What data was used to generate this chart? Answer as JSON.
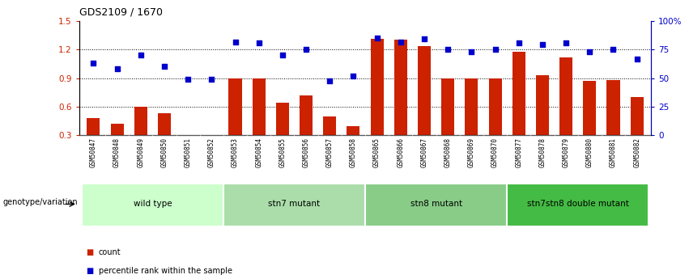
{
  "title": "GDS2109 / 1670",
  "samples": [
    "GSM50847",
    "GSM50848",
    "GSM50849",
    "GSM50850",
    "GSM50851",
    "GSM50852",
    "GSM50853",
    "GSM50854",
    "GSM50855",
    "GSM50856",
    "GSM50857",
    "GSM50858",
    "GSM50865",
    "GSM50866",
    "GSM50867",
    "GSM50868",
    "GSM50869",
    "GSM50870",
    "GSM50877",
    "GSM50878",
    "GSM50879",
    "GSM50880",
    "GSM50881",
    "GSM50882"
  ],
  "bar_values": [
    0.48,
    0.42,
    0.6,
    0.53,
    0.3,
    0.3,
    0.9,
    0.9,
    0.64,
    0.72,
    0.5,
    0.4,
    1.31,
    1.3,
    1.24,
    0.9,
    0.9,
    0.9,
    1.18,
    0.93,
    1.12,
    0.87,
    0.88,
    0.7
  ],
  "dot_values": [
    1.06,
    1.0,
    1.14,
    1.02,
    0.89,
    0.89,
    1.28,
    1.27,
    1.14,
    1.2,
    0.87,
    0.92,
    1.32,
    1.28,
    1.31,
    1.2,
    1.18,
    1.2,
    1.27,
    1.25,
    1.27,
    1.18,
    1.2,
    1.1
  ],
  "groups": [
    {
      "label": "wild type",
      "start": 0,
      "end": 6,
      "color": "#ccffcc"
    },
    {
      "label": "stn7 mutant",
      "start": 6,
      "end": 12,
      "color": "#aaddaa"
    },
    {
      "label": "stn8 mutant",
      "start": 12,
      "end": 18,
      "color": "#88cc88"
    },
    {
      "label": "stn7stn8 double mutant",
      "start": 18,
      "end": 24,
      "color": "#44bb44"
    }
  ],
  "bar_color": "#cc2200",
  "dot_color": "#0000cc",
  "yticks_left": [
    0.3,
    0.6,
    0.9,
    1.2,
    1.5
  ],
  "yticks_right_labels": [
    "0",
    "25",
    "50",
    "75",
    "100%"
  ],
  "yticks_right_vals": [
    0.3,
    0.6,
    0.9,
    1.2,
    1.5
  ],
  "ylim": [
    0.3,
    1.5
  ],
  "bar_bottom": 0.3,
  "ylabel_left_color": "#cc2200",
  "ylabel_right_color": "#0000cc",
  "hlines": [
    0.6,
    0.9,
    1.2
  ],
  "genotype_label": "genotype/variation",
  "legend_count": "count",
  "legend_percentile": "percentile rank within the sample",
  "tick_label_bg": "#d8d8d8",
  "fig_bg": "#ffffff"
}
